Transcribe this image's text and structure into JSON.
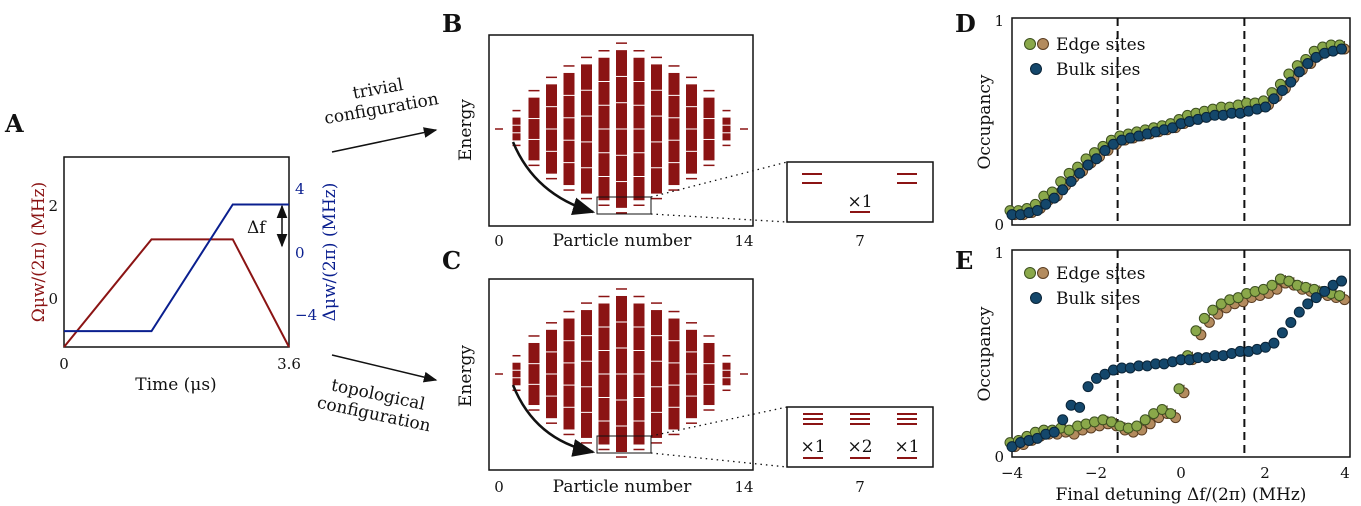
{
  "panels": {
    "a": "A",
    "b": "B",
    "c": "C",
    "d": "D",
    "e": "E"
  },
  "colors": {
    "omega": "#8b1414",
    "delta": "#0a1f8f",
    "spectrum": "#8b1414",
    "edge_fill": "#8aa84a",
    "edge_alt": "#b38b5e",
    "bulk": "#14476b"
  },
  "panel_a": {
    "xlabel": "Time (μs)",
    "ylabel_left": "Ωμw/(2π) (MHz)",
    "ylabel_right": "Δμw/(2π) (MHz)",
    "x_ticks": [
      "0",
      "3.6"
    ],
    "y_left_ticks": [
      "0",
      "2"
    ],
    "y_right_ticks": [
      "−4",
      "0",
      "4"
    ],
    "delta_f_label": "Δf",
    "xlim": [
      0,
      3.6
    ],
    "ylim_left": [
      0,
      3
    ],
    "ylim_right": [
      -6,
      6
    ],
    "omega": {
      "t": [
        0,
        1.4,
        2.7,
        3.6
      ],
      "v": [
        0,
        1.7,
        1.7,
        0
      ]
    },
    "delta": {
      "t": [
        0,
        1.4,
        2.7,
        3.6
      ],
      "v": [
        -5,
        -5,
        3,
        3
      ]
    }
  },
  "arrows": {
    "trivial": [
      "trivial",
      "configuration"
    ],
    "topological": [
      "topological",
      "configuration"
    ]
  },
  "panel_b": {
    "ylabel": "Energy",
    "xlabel": "Particle number",
    "x_ticks": [
      "0",
      "14"
    ],
    "x_range": [
      0,
      14
    ],
    "half_heights": [
      0,
      0.12,
      0.33,
      0.47,
      0.59,
      0.68,
      0.75,
      0.83,
      0.75,
      0.68,
      0.59,
      0.47,
      0.33,
      0.12,
      0
    ],
    "inset": {
      "tick": "7",
      "label": "×1"
    }
  },
  "panel_c": {
    "ylabel": "Energy",
    "xlabel": "Particle number",
    "x_ticks": [
      "0",
      "14"
    ],
    "x_range": [
      0,
      14
    ],
    "half_heights": [
      0,
      0.12,
      0.33,
      0.47,
      0.59,
      0.68,
      0.75,
      0.83,
      0.75,
      0.68,
      0.59,
      0.47,
      0.33,
      0.12,
      0
    ],
    "inset": {
      "tick": "7",
      "labels": [
        "×1",
        "×2",
        "×1"
      ]
    }
  },
  "chart_data": [
    {
      "type": "scatter",
      "panel": "D",
      "ylabel": "Occupancy",
      "y_ticks": [
        "0",
        "1"
      ],
      "xlim": [
        -4,
        4
      ],
      "ylim": [
        0,
        1
      ],
      "legend": [
        "Edge sites",
        "Bulk sites"
      ],
      "legend_position": "top-left",
      "vlines": [
        -1.5,
        1.5
      ],
      "x": [
        -4,
        -3.8,
        -3.6,
        -3.4,
        -3.2,
        -3.0,
        -2.8,
        -2.6,
        -2.4,
        -2.2,
        -2.0,
        -1.8,
        -1.6,
        -1.4,
        -1.2,
        -1.0,
        -0.8,
        -0.6,
        -0.4,
        -0.2,
        0,
        0.2,
        0.4,
        0.6,
        0.8,
        1.0,
        1.2,
        1.4,
        1.6,
        1.8,
        2.0,
        2.2,
        2.4,
        2.6,
        2.8,
        3.0,
        3.2,
        3.4,
        3.6,
        3.8
      ],
      "series": [
        {
          "name": "Edge sites",
          "values": [
            0.06,
            0.06,
            0.07,
            0.09,
            0.13,
            0.15,
            0.2,
            0.24,
            0.27,
            0.31,
            0.34,
            0.37,
            0.4,
            0.42,
            0.43,
            0.44,
            0.45,
            0.46,
            0.47,
            0.48,
            0.5,
            0.52,
            0.53,
            0.54,
            0.55,
            0.56,
            0.56,
            0.57,
            0.58,
            0.58,
            0.59,
            0.63,
            0.67,
            0.72,
            0.76,
            0.79,
            0.83,
            0.85,
            0.86,
            0.86
          ]
        },
        {
          "name": "Bulk sites",
          "values": [
            0.05,
            0.05,
            0.06,
            0.07,
            0.1,
            0.13,
            0.17,
            0.21,
            0.25,
            0.29,
            0.32,
            0.36,
            0.39,
            0.41,
            0.42,
            0.43,
            0.44,
            0.45,
            0.46,
            0.47,
            0.49,
            0.5,
            0.51,
            0.52,
            0.53,
            0.53,
            0.54,
            0.54,
            0.55,
            0.56,
            0.57,
            0.61,
            0.65,
            0.69,
            0.74,
            0.78,
            0.81,
            0.83,
            0.84,
            0.85
          ]
        }
      ]
    },
    {
      "type": "scatter",
      "panel": "E",
      "xlabel": "Final detuning Δf/(2π) (MHz)",
      "ylabel": "Occupancy",
      "x_ticks": [
        "−4",
        "−2",
        "0",
        "2",
        "4"
      ],
      "y_ticks": [
        "0",
        "1"
      ],
      "xlim": [
        -4,
        4
      ],
      "ylim": [
        0,
        1
      ],
      "legend": [
        "Edge sites",
        "Bulk sites"
      ],
      "legend_position": "top-left",
      "vlines": [
        -1.5,
        1.5
      ],
      "x": [
        -4,
        -3.8,
        -3.6,
        -3.4,
        -3.2,
        -3.0,
        -2.8,
        -2.6,
        -2.4,
        -2.2,
        -2.0,
        -1.8,
        -1.6,
        -1.4,
        -1.2,
        -1.0,
        -0.8,
        -0.6,
        -0.4,
        -0.2,
        0,
        0.2,
        0.4,
        0.6,
        0.8,
        1.0,
        1.2,
        1.4,
        1.6,
        1.8,
        2.0,
        2.2,
        2.4,
        2.6,
        2.8,
        3.0,
        3.2,
        3.4,
        3.6,
        3.8
      ],
      "series": [
        {
          "name": "Edge sites",
          "values": [
            0.06,
            0.07,
            0.09,
            0.11,
            0.12,
            0.12,
            0.13,
            0.12,
            0.14,
            0.15,
            0.16,
            0.17,
            0.16,
            0.14,
            0.13,
            0.14,
            0.17,
            0.2,
            0.22,
            0.2,
            0.32,
            0.48,
            0.6,
            0.66,
            0.7,
            0.73,
            0.75,
            0.76,
            0.78,
            0.79,
            0.8,
            0.82,
            0.85,
            0.84,
            0.82,
            0.81,
            0.8,
            0.79,
            0.78,
            0.77
          ]
        },
        {
          "name": "Bulk sites",
          "values": [
            0.05,
            0.07,
            0.08,
            0.09,
            0.11,
            0.12,
            0.18,
            0.25,
            0.24,
            0.34,
            0.38,
            0.4,
            0.42,
            0.43,
            0.43,
            0.44,
            0.44,
            0.45,
            0.45,
            0.46,
            0.47,
            0.47,
            0.48,
            0.48,
            0.49,
            0.49,
            0.5,
            0.51,
            0.51,
            0.52,
            0.53,
            0.55,
            0.6,
            0.65,
            0.7,
            0.74,
            0.77,
            0.8,
            0.83,
            0.85
          ]
        }
      ]
    }
  ]
}
